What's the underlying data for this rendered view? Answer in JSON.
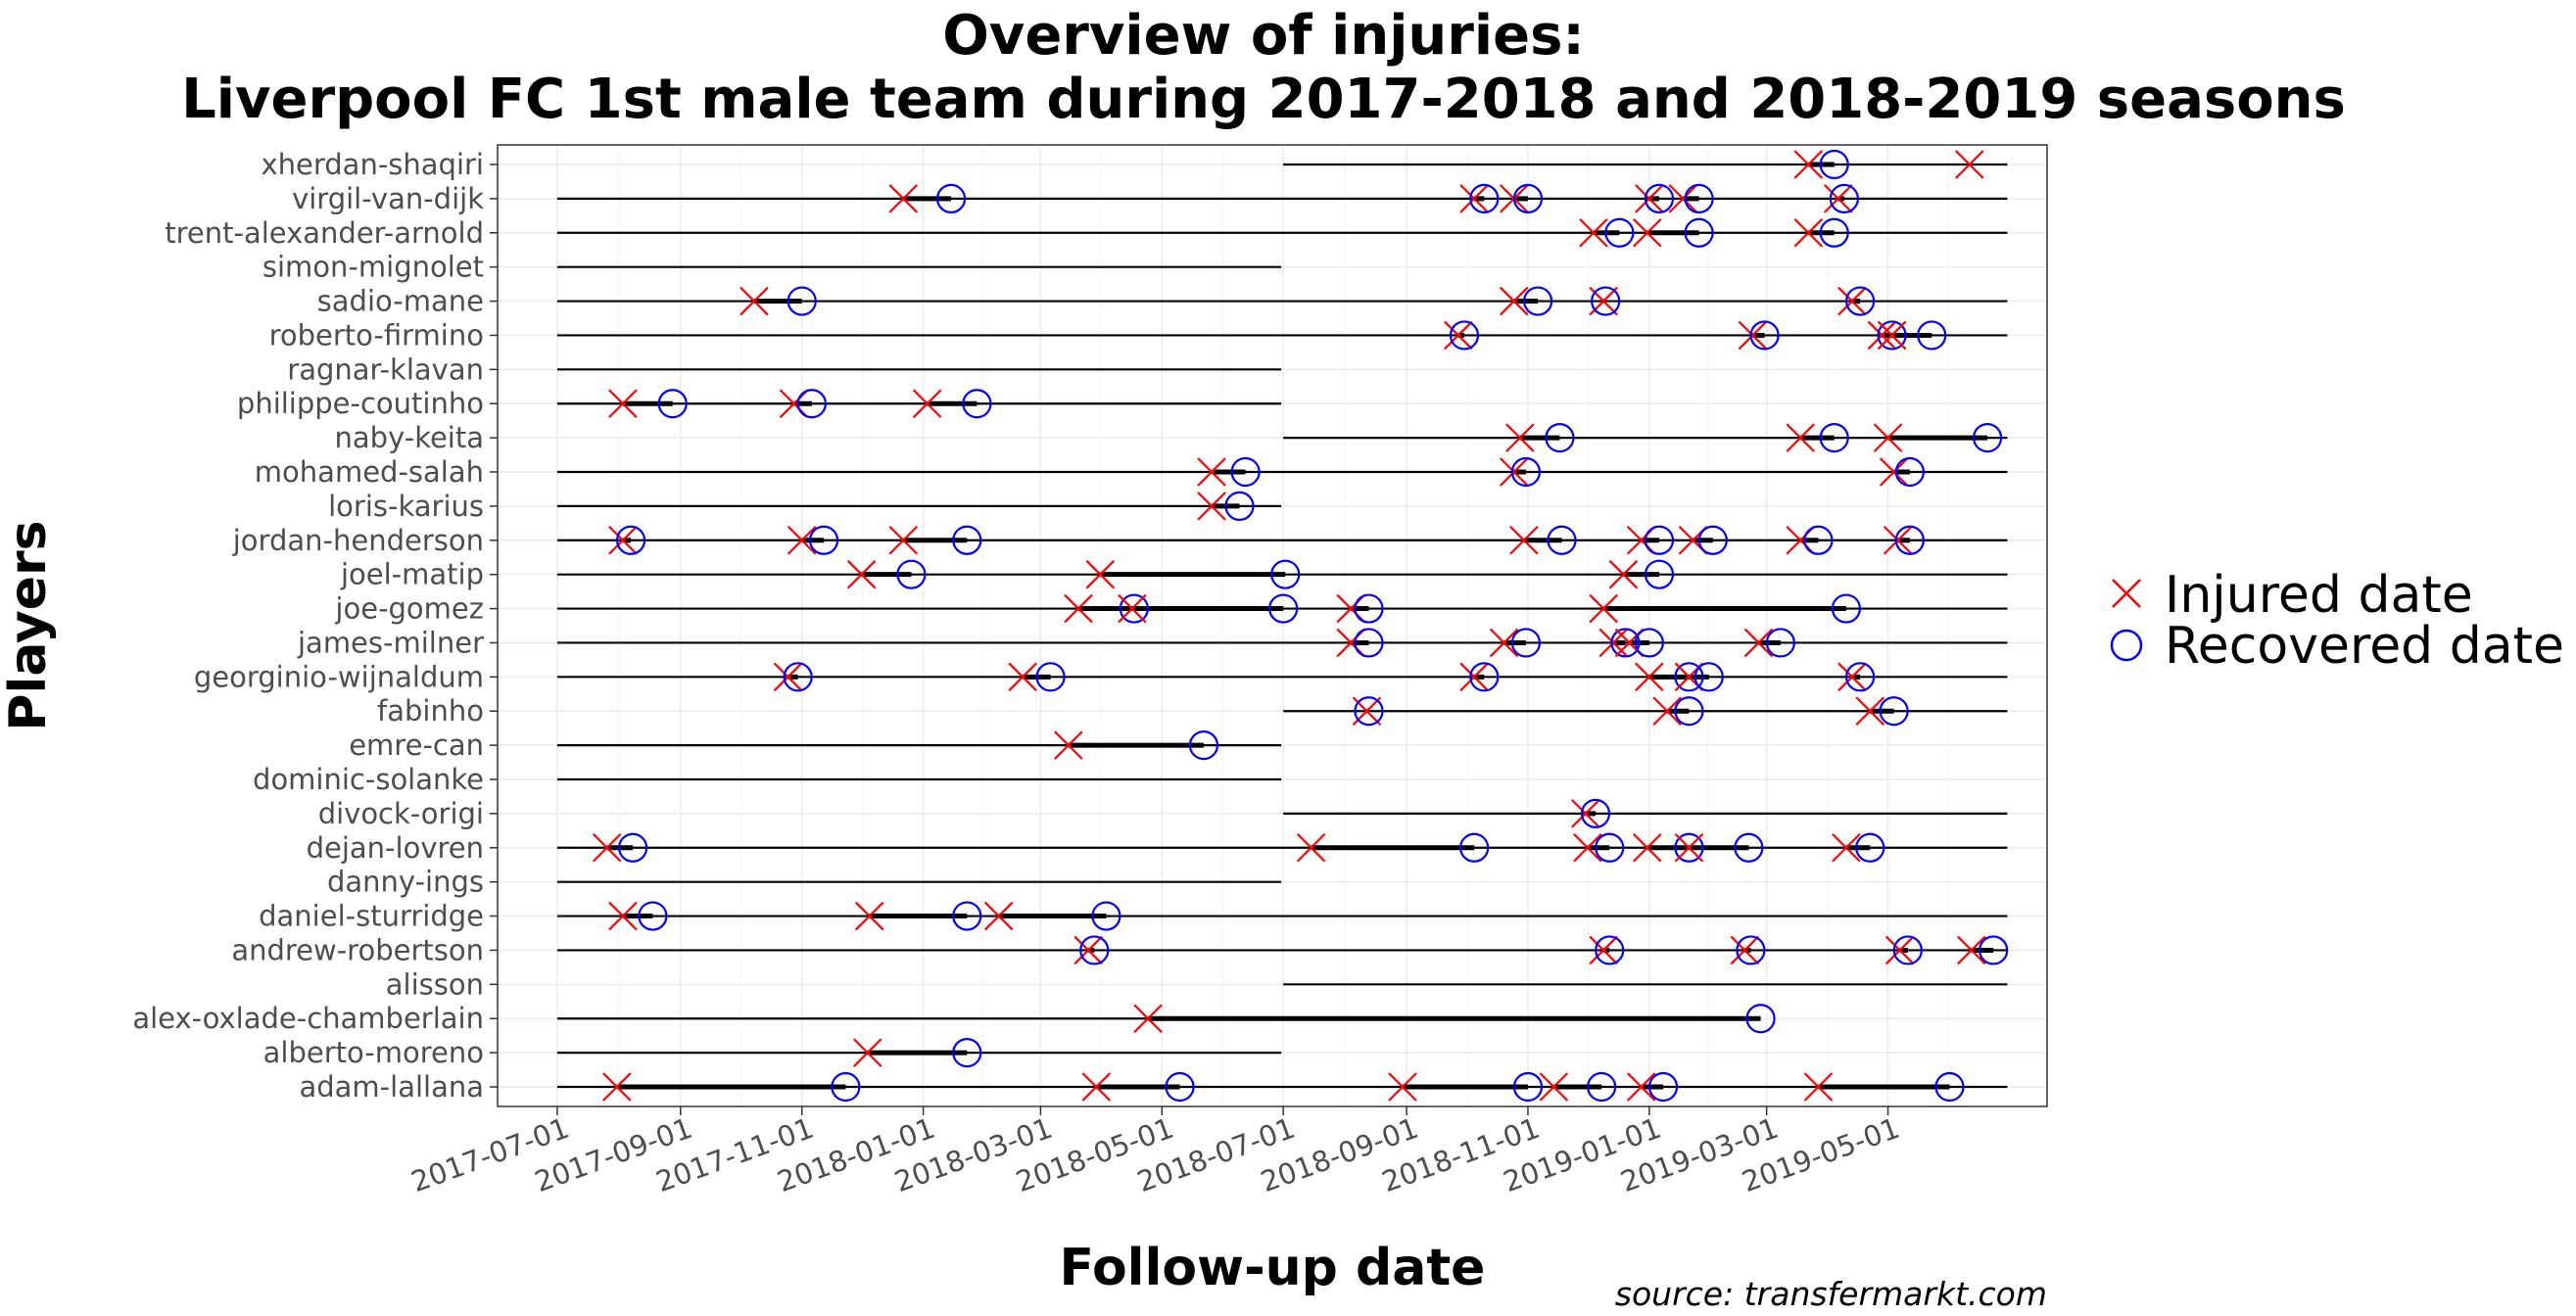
{
  "chart_data": {
    "type": "scatter",
    "title": "Overview of injuries:",
    "subtitle": "Liverpool FC 1st male team during 2017-2018 and 2018-2019 seasons",
    "xlabel": "Follow-up date",
    "ylabel": "Players",
    "caption": "source: transfermarkt.com",
    "xlim": [
      "2017-06-01",
      "2019-07-20"
    ],
    "x_ticks": [
      "2017-07-01",
      "2017-09-01",
      "2017-11-01",
      "2018-01-01",
      "2018-03-01",
      "2018-05-01",
      "2018-07-01",
      "2018-09-01",
      "2018-11-01",
      "2019-01-01",
      "2019-03-01",
      "2019-05-01"
    ],
    "grid": true,
    "legend_position": "right",
    "legend": [
      {
        "name": "Injured date",
        "marker": "x",
        "color": "#ff0000"
      },
      {
        "name": "Recovered date",
        "marker": "circle",
        "color": "#0000ff"
      }
    ],
    "players": [
      {
        "name": "xherdan-shaqiri",
        "follow_up": [
          "2018-07-01",
          "2019-06-30"
        ],
        "injuries": [
          [
            "2019-03-22",
            "2019-04-04"
          ],
          [
            "2019-06-11",
            null
          ]
        ]
      },
      {
        "name": "virgil-van-dijk",
        "follow_up": [
          "2017-07-01",
          "2019-06-30"
        ],
        "injuries": [
          [
            "2017-12-22",
            "2018-01-15"
          ],
          [
            "2018-10-05",
            "2018-10-10"
          ],
          [
            "2018-10-25",
            "2018-11-01"
          ],
          [
            "2019-01-01",
            "2019-01-06"
          ],
          [
            "2019-01-18",
            "2019-01-26"
          ],
          [
            "2019-04-06",
            "2019-04-09"
          ]
        ]
      },
      {
        "name": "trent-alexander-arnold",
        "follow_up": [
          "2017-07-01",
          "2019-06-30"
        ],
        "injuries": [
          [
            "2018-12-04",
            "2018-12-17"
          ],
          [
            "2018-12-31",
            "2019-01-26"
          ],
          [
            "2019-03-22",
            "2019-04-04"
          ]
        ]
      },
      {
        "name": "simon-mignolet",
        "follow_up": [
          "2017-07-01",
          "2018-06-30"
        ],
        "injuries": []
      },
      {
        "name": "sadio-mane",
        "follow_up": [
          "2017-07-01",
          "2019-06-30"
        ],
        "injuries": [
          [
            "2017-10-08",
            "2017-11-01"
          ],
          [
            "2018-10-25",
            "2018-11-06"
          ],
          [
            "2018-12-09",
            "2018-12-10"
          ],
          [
            "2019-04-13",
            "2019-04-17"
          ]
        ]
      },
      {
        "name": "roberto-firmino",
        "follow_up": [
          "2017-07-01",
          "2019-06-30"
        ],
        "injuries": [
          [
            "2018-09-27",
            "2018-09-30"
          ],
          [
            "2019-02-22",
            "2019-02-28"
          ],
          [
            "2019-04-28",
            "2019-05-03"
          ],
          [
            "2019-05-03",
            "2019-05-23"
          ]
        ]
      },
      {
        "name": "ragnar-klavan",
        "follow_up": [
          "2017-07-01",
          "2018-06-30"
        ],
        "injuries": []
      },
      {
        "name": "philippe-coutinho",
        "follow_up": [
          "2017-07-01",
          "2018-06-30"
        ],
        "injuries": [
          [
            "2017-08-03",
            "2017-08-28"
          ],
          [
            "2017-10-28",
            "2017-11-06"
          ],
          [
            "2018-01-03",
            "2018-01-28"
          ]
        ]
      },
      {
        "name": "naby-keita",
        "follow_up": [
          "2018-07-01",
          "2019-06-30"
        ],
        "injuries": [
          [
            "2018-10-28",
            "2018-11-17"
          ],
          [
            "2019-03-18",
            "2019-04-04"
          ],
          [
            "2019-05-01",
            "2019-06-20"
          ]
        ]
      },
      {
        "name": "mohamed-salah",
        "follow_up": [
          "2017-07-01",
          "2019-06-30"
        ],
        "injuries": [
          [
            "2018-05-26",
            "2018-06-12"
          ],
          [
            "2018-10-25",
            "2018-10-31"
          ],
          [
            "2019-05-04",
            "2019-05-12"
          ]
        ]
      },
      {
        "name": "loris-karius",
        "follow_up": [
          "2017-07-01",
          "2018-06-30"
        ],
        "injuries": [
          [
            "2018-05-26",
            "2018-06-09"
          ]
        ]
      },
      {
        "name": "jordan-henderson",
        "follow_up": [
          "2017-07-01",
          "2019-06-30"
        ],
        "injuries": [
          [
            "2017-08-03",
            "2017-08-07"
          ],
          [
            "2017-11-01",
            "2017-11-12"
          ],
          [
            "2017-12-22",
            "2018-01-23"
          ],
          [
            "2018-10-30",
            "2018-11-18"
          ],
          [
            "2018-12-28",
            "2019-01-06"
          ],
          [
            "2019-01-23",
            "2019-02-02"
          ],
          [
            "2019-03-18",
            "2019-03-27"
          ],
          [
            "2019-05-06",
            "2019-05-12"
          ]
        ]
      },
      {
        "name": "joel-matip",
        "follow_up": [
          "2017-07-01",
          "2019-06-30"
        ],
        "injuries": [
          [
            "2017-12-01",
            "2017-12-26"
          ],
          [
            "2018-03-31",
            "2018-07-02"
          ],
          [
            "2018-12-19",
            "2019-01-06"
          ]
        ]
      },
      {
        "name": "joe-gomez",
        "follow_up": [
          "2017-07-01",
          "2019-06-30"
        ],
        "injuries": [
          [
            "2018-03-20",
            "2018-04-17"
          ],
          [
            "2018-04-16",
            "2018-07-01"
          ],
          [
            "2018-08-04",
            "2018-08-13"
          ],
          [
            "2018-12-09",
            "2019-04-10"
          ]
        ]
      },
      {
        "name": "james-milner",
        "follow_up": [
          "2017-07-01",
          "2019-06-30"
        ],
        "injuries": [
          [
            "2018-08-04",
            "2018-08-13"
          ],
          [
            "2018-10-20",
            "2018-10-31"
          ],
          [
            "2018-12-14",
            "2018-12-20"
          ],
          [
            "2018-12-22",
            "2019-01-01"
          ],
          [
            "2019-02-25",
            "2019-03-08"
          ]
        ]
      },
      {
        "name": "georginio-wijnaldum",
        "follow_up": [
          "2017-07-01",
          "2019-06-30"
        ],
        "injuries": [
          [
            "2017-10-25",
            "2017-10-30"
          ],
          [
            "2018-02-20",
            "2018-03-06"
          ],
          [
            "2018-10-05",
            "2018-10-10"
          ],
          [
            "2019-01-01",
            "2019-01-21"
          ],
          [
            "2019-01-21",
            "2019-01-31"
          ],
          [
            "2019-04-13",
            "2019-04-17"
          ]
        ]
      },
      {
        "name": "fabinho",
        "follow_up": [
          "2018-07-01",
          "2019-06-30"
        ],
        "injuries": [
          [
            "2018-08-12",
            "2018-08-13"
          ],
          [
            "2019-01-10",
            "2019-01-21"
          ],
          [
            "2019-04-22",
            "2019-05-04"
          ]
        ]
      },
      {
        "name": "emre-can",
        "follow_up": [
          "2017-07-01",
          "2018-06-30"
        ],
        "injuries": [
          [
            "2018-03-15",
            "2018-05-22"
          ]
        ]
      },
      {
        "name": "dominic-solanke",
        "follow_up": [
          "2017-07-01",
          "2018-06-30"
        ],
        "injuries": []
      },
      {
        "name": "divock-origi",
        "follow_up": [
          "2018-07-01",
          "2019-06-30"
        ],
        "injuries": [
          [
            "2018-11-30",
            "2018-12-05"
          ]
        ]
      },
      {
        "name": "dejan-lovren",
        "follow_up": [
          "2017-07-01",
          "2019-06-30"
        ],
        "injuries": [
          [
            "2017-07-26",
            "2017-08-08"
          ],
          [
            "2018-07-15",
            "2018-10-05"
          ],
          [
            "2018-12-01",
            "2018-12-12"
          ],
          [
            "2018-12-31",
            "2019-01-21"
          ],
          [
            "2019-01-21",
            "2019-02-20"
          ],
          [
            "2019-04-10",
            "2019-04-22"
          ]
        ]
      },
      {
        "name": "danny-ings",
        "follow_up": [
          "2017-07-01",
          "2018-06-30"
        ],
        "injuries": []
      },
      {
        "name": "daniel-sturridge",
        "follow_up": [
          "2017-07-01",
          "2019-06-30"
        ],
        "injuries": [
          [
            "2017-08-03",
            "2017-08-18"
          ],
          [
            "2017-12-05",
            "2018-01-23"
          ],
          [
            "2018-02-08",
            "2018-04-03"
          ]
        ]
      },
      {
        "name": "andrew-robertson",
        "follow_up": [
          "2017-07-01",
          "2019-06-30"
        ],
        "injuries": [
          [
            "2018-03-25",
            "2018-03-28"
          ],
          [
            "2018-12-09",
            "2018-12-12"
          ],
          [
            "2019-02-18",
            "2019-02-21"
          ],
          [
            "2019-05-07",
            "2019-05-11"
          ],
          [
            "2019-06-12",
            "2019-06-23"
          ]
        ]
      },
      {
        "name": "alisson",
        "follow_up": [
          "2018-07-01",
          "2019-06-30"
        ],
        "injuries": []
      },
      {
        "name": "alex-oxlade-chamberlain",
        "follow_up": [
          "2017-07-01",
          "2018-06-30"
        ],
        "injuries": [
          [
            "2018-04-24",
            "2019-02-26"
          ]
        ]
      },
      {
        "name": "alberto-moreno",
        "follow_up": [
          "2017-07-01",
          "2018-06-30"
        ],
        "injuries": [
          [
            "2017-12-04",
            "2018-01-23"
          ]
        ]
      },
      {
        "name": "adam-lallana",
        "follow_up": [
          "2017-07-01",
          "2019-06-30"
        ],
        "injuries": [
          [
            "2017-07-31",
            "2017-11-23"
          ],
          [
            "2018-03-29",
            "2018-05-10"
          ],
          [
            "2018-08-30",
            "2018-11-01"
          ],
          [
            "2018-11-14",
            "2018-12-08"
          ],
          [
            "2018-12-28",
            "2019-01-08"
          ],
          [
            "2019-03-27",
            "2019-06-01"
          ]
        ]
      }
    ]
  }
}
